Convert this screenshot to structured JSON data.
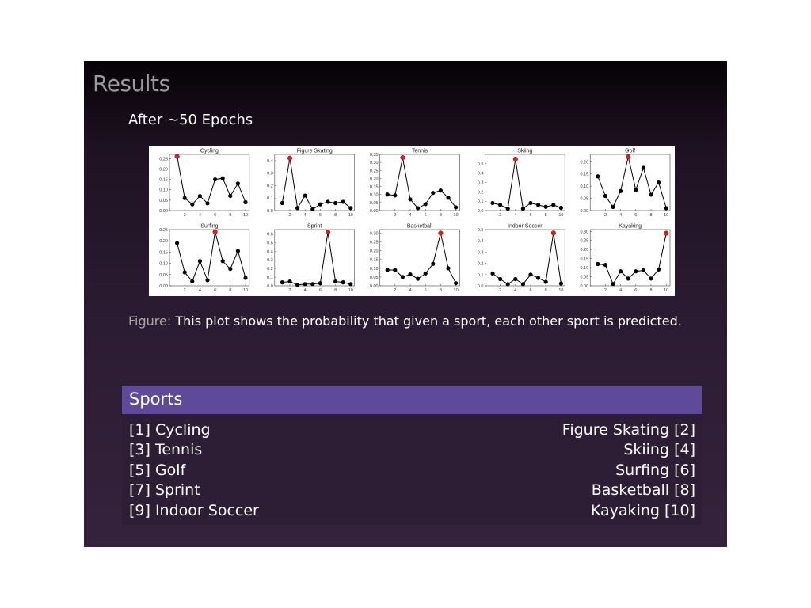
{
  "slide": {
    "title": "Results",
    "subtitle": "After ∼50 Epochs",
    "caption_label": "Figure:",
    "caption_text": "This plot shows the probability that given a sport, each other sport is predicted."
  },
  "sports_box": {
    "header": "Sports",
    "rows": [
      {
        "left": "[1] Cycling",
        "right": "Figure Skating [2]"
      },
      {
        "left": "[3] Tennis",
        "right": "Skiing [4]"
      },
      {
        "left": "[5] Golf",
        "right": "Surfing [6]"
      },
      {
        "left": "[7] Sprint",
        "right": "Basketball [8]"
      },
      {
        "left": "[9] Indoor Soccer",
        "right": "Kayaking [10]"
      }
    ]
  },
  "colors": {
    "line": "#000000",
    "highlight": "#e02020",
    "header_bg": "#5e4a99"
  },
  "chart_data": [
    {
      "type": "line",
      "title": "Cycling",
      "x": [
        1,
        2,
        3,
        4,
        5,
        6,
        7,
        8,
        9,
        10
      ],
      "values": [
        0.26,
        0.06,
        0.03,
        0.07,
        0.035,
        0.15,
        0.155,
        0.07,
        0.13,
        0.04
      ],
      "highlight_index": 0,
      "ylim": [
        0,
        0.27
      ],
      "yticks": [
        0,
        0.05,
        0.1,
        0.15,
        0.2,
        0.25
      ],
      "xticks": [
        2,
        4,
        6,
        8,
        10
      ]
    },
    {
      "type": "line",
      "title": "Figure Skating",
      "x": [
        1,
        2,
        3,
        4,
        5,
        6,
        7,
        8,
        9,
        10
      ],
      "values": [
        0.06,
        0.42,
        0.02,
        0.12,
        0.01,
        0.05,
        0.07,
        0.06,
        0.07,
        0.02
      ],
      "highlight_index": 1,
      "ylim": [
        0,
        0.45
      ],
      "yticks": [
        0,
        0.1,
        0.2,
        0.3,
        0.4
      ],
      "xticks": [
        2,
        4,
        6,
        8,
        10
      ]
    },
    {
      "type": "line",
      "title": "Tennis",
      "x": [
        1,
        2,
        3,
        4,
        5,
        6,
        7,
        8,
        9,
        10
      ],
      "values": [
        0.1,
        0.095,
        0.33,
        0.07,
        0.015,
        0.04,
        0.11,
        0.125,
        0.08,
        0.02
      ],
      "highlight_index": 2,
      "ylim": [
        0,
        0.35
      ],
      "yticks": [
        0,
        0.05,
        0.1,
        0.15,
        0.2,
        0.25,
        0.3,
        0.35
      ],
      "xticks": [
        2,
        4,
        6,
        8,
        10
      ]
    },
    {
      "type": "line",
      "title": "Skiing",
      "x": [
        1,
        2,
        3,
        4,
        5,
        6,
        7,
        8,
        9,
        10
      ],
      "values": [
        0.08,
        0.06,
        0.02,
        0.55,
        0.02,
        0.08,
        0.06,
        0.04,
        0.06,
        0.03
      ],
      "highlight_index": 3,
      "ylim": [
        0,
        0.6
      ],
      "yticks": [
        0,
        0.1,
        0.2,
        0.3,
        0.4,
        0.5
      ],
      "xticks": [
        2,
        4,
        6,
        8,
        10
      ]
    },
    {
      "type": "line",
      "title": "Golf",
      "x": [
        1,
        2,
        3,
        4,
        5,
        6,
        7,
        8,
        9,
        10
      ],
      "values": [
        0.14,
        0.06,
        0.015,
        0.08,
        0.22,
        0.085,
        0.175,
        0.065,
        0.115,
        0.01
      ],
      "highlight_index": 4,
      "ylim": [
        0,
        0.23
      ],
      "yticks": [
        0,
        0.05,
        0.1,
        0.15,
        0.2
      ],
      "xticks": [
        2,
        4,
        6,
        8,
        10
      ]
    },
    {
      "type": "line",
      "title": "Surfing",
      "x": [
        1,
        2,
        3,
        4,
        5,
        6,
        7,
        8,
        9,
        10
      ],
      "values": [
        0.19,
        0.06,
        0.02,
        0.11,
        0.025,
        0.24,
        0.11,
        0.075,
        0.155,
        0.035
      ],
      "highlight_index": 5,
      "ylim": [
        0,
        0.25
      ],
      "yticks": [
        0,
        0.05,
        0.1,
        0.15,
        0.2,
        0.25
      ],
      "xticks": [
        2,
        4,
        6,
        8,
        10
      ]
    },
    {
      "type": "line",
      "title": "Sprint",
      "x": [
        1,
        2,
        3,
        4,
        5,
        6,
        7,
        8,
        9,
        10
      ],
      "values": [
        0.04,
        0.05,
        0.01,
        0.02,
        0.02,
        0.03,
        0.62,
        0.05,
        0.04,
        0.02
      ],
      "highlight_index": 6,
      "ylim": [
        0,
        0.65
      ],
      "yticks": [
        0,
        0.1,
        0.2,
        0.3,
        0.4,
        0.5,
        0.6
      ],
      "xticks": [
        2,
        4,
        6,
        8,
        10
      ]
    },
    {
      "type": "line",
      "title": "Basketball",
      "x": [
        1,
        2,
        3,
        4,
        5,
        6,
        7,
        8,
        9,
        10
      ],
      "values": [
        0.09,
        0.09,
        0.05,
        0.065,
        0.04,
        0.07,
        0.125,
        0.3,
        0.1,
        0.015
      ],
      "highlight_index": 7,
      "ylim": [
        0,
        0.32
      ],
      "yticks": [
        0,
        0.05,
        0.1,
        0.15,
        0.2,
        0.25,
        0.3
      ],
      "xticks": [
        2,
        4,
        6,
        8,
        10
      ]
    },
    {
      "type": "line",
      "title": "Indoor Soccer",
      "x": [
        1,
        2,
        3,
        4,
        5,
        6,
        7,
        8,
        9,
        10
      ],
      "values": [
        0.11,
        0.06,
        0.015,
        0.06,
        0.015,
        0.1,
        0.07,
        0.035,
        0.47,
        0.02
      ],
      "highlight_index": 8,
      "ylim": [
        0,
        0.5
      ],
      "yticks": [
        0,
        0.1,
        0.2,
        0.3,
        0.4,
        0.5
      ],
      "xticks": [
        2,
        4,
        6,
        8,
        10
      ]
    },
    {
      "type": "line",
      "title": "Kayaking",
      "x": [
        1,
        2,
        3,
        4,
        5,
        6,
        7,
        8,
        9,
        10
      ],
      "values": [
        0.12,
        0.115,
        0.01,
        0.08,
        0.04,
        0.08,
        0.085,
        0.04,
        0.09,
        0.29
      ],
      "highlight_index": 9,
      "ylim": [
        0,
        0.31
      ],
      "yticks": [
        0,
        0.05,
        0.1,
        0.15,
        0.2,
        0.25,
        0.3
      ],
      "xticks": [
        2,
        4,
        6,
        8,
        10
      ]
    }
  ]
}
